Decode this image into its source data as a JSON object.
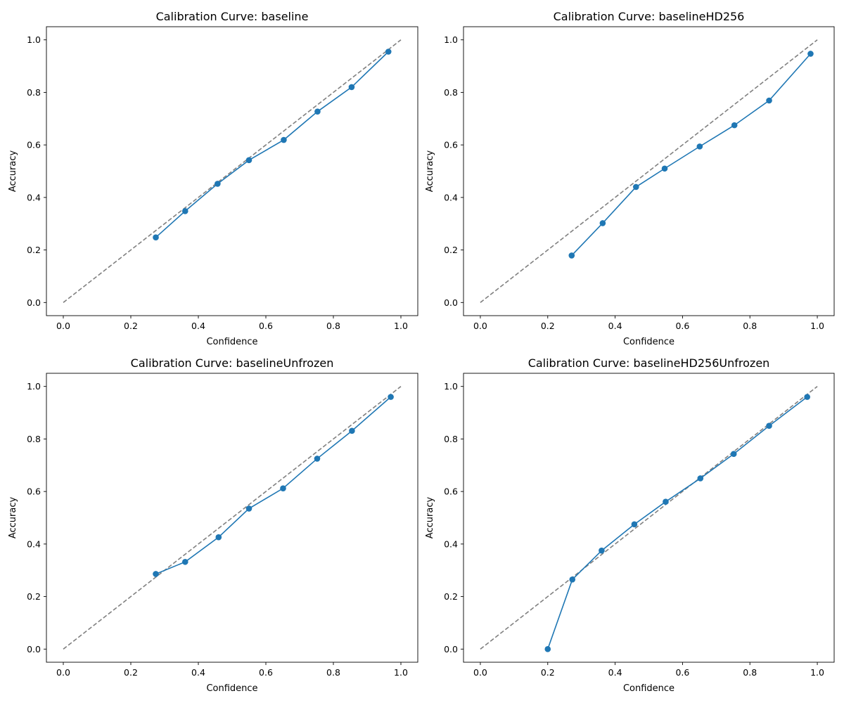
{
  "colors": {
    "series_line": "#1f77b4",
    "reference_line": "#808080",
    "axes": "#000000",
    "background": "#ffffff"
  },
  "chart_data": [
    {
      "type": "line",
      "title": "Calibration Curve: baseline",
      "xlabel": "Confidence",
      "ylabel": "Accuracy",
      "xlim": [
        -0.05,
        1.05
      ],
      "ylim": [
        -0.05,
        1.05
      ],
      "xticks": [
        "0.0",
        "0.2",
        "0.4",
        "0.6",
        "0.8",
        "1.0"
      ],
      "yticks": [
        "0.0",
        "0.2",
        "0.4",
        "0.6",
        "0.8",
        "1.0"
      ],
      "grid": false,
      "reference_line": {
        "x": [
          0,
          1
        ],
        "y": [
          0,
          1
        ],
        "style": "dashed"
      },
      "series": [
        {
          "x": [
            0.274,
            0.361,
            0.457,
            0.55,
            0.653,
            0.753,
            0.854,
            0.963
          ],
          "y": [
            0.248,
            0.348,
            0.452,
            0.542,
            0.619,
            0.727,
            0.82,
            0.955
          ]
        }
      ]
    },
    {
      "type": "line",
      "title": "Calibration Curve: baselineHD256",
      "xlabel": "Confidence",
      "ylabel": "Accuracy",
      "xlim": [
        -0.05,
        1.05
      ],
      "ylim": [
        -0.05,
        1.05
      ],
      "xticks": [
        "0.0",
        "0.2",
        "0.4",
        "0.6",
        "0.8",
        "1.0"
      ],
      "yticks": [
        "0.0",
        "0.2",
        "0.4",
        "0.6",
        "0.8",
        "1.0"
      ],
      "grid": false,
      "reference_line": {
        "x": [
          0,
          1
        ],
        "y": [
          0,
          1
        ],
        "style": "dashed"
      },
      "series": [
        {
          "x": [
            0.271,
            0.363,
            0.462,
            0.547,
            0.651,
            0.754,
            0.857,
            0.98
          ],
          "y": [
            0.179,
            0.302,
            0.44,
            0.51,
            0.594,
            0.675,
            0.769,
            0.947
          ]
        }
      ]
    },
    {
      "type": "line",
      "title": "Calibration Curve: baselineUnfrozen",
      "xlabel": "Confidence",
      "ylabel": "Accuracy",
      "xlim": [
        -0.05,
        1.05
      ],
      "ylim": [
        -0.05,
        1.05
      ],
      "xticks": [
        "0.0",
        "0.2",
        "0.4",
        "0.6",
        "0.8",
        "1.0"
      ],
      "yticks": [
        "0.0",
        "0.2",
        "0.4",
        "0.6",
        "0.8",
        "1.0"
      ],
      "grid": false,
      "reference_line": {
        "x": [
          0,
          1
        ],
        "y": [
          0,
          1
        ],
        "style": "dashed"
      },
      "series": [
        {
          "x": [
            0.274,
            0.361,
            0.46,
            0.55,
            0.651,
            0.752,
            0.855,
            0.97
          ],
          "y": [
            0.286,
            0.332,
            0.426,
            0.535,
            0.612,
            0.725,
            0.831,
            0.96
          ]
        }
      ]
    },
    {
      "type": "line",
      "title": "Calibration Curve: baselineHD256Unfrozen",
      "xlabel": "Confidence",
      "ylabel": "Accuracy",
      "xlim": [
        -0.05,
        1.05
      ],
      "ylim": [
        -0.05,
        1.05
      ],
      "xticks": [
        "0.0",
        "0.2",
        "0.4",
        "0.6",
        "0.8",
        "1.0"
      ],
      "yticks": [
        "0.0",
        "0.2",
        "0.4",
        "0.6",
        "0.8",
        "1.0"
      ],
      "grid": false,
      "reference_line": {
        "x": [
          0,
          1
        ],
        "y": [
          0,
          1
        ],
        "style": "dashed"
      },
      "series": [
        {
          "x": [
            0.2,
            0.273,
            0.36,
            0.457,
            0.55,
            0.653,
            0.752,
            0.857,
            0.97
          ],
          "y": [
            0.0,
            0.265,
            0.375,
            0.475,
            0.561,
            0.65,
            0.743,
            0.85,
            0.96
          ]
        }
      ]
    }
  ]
}
